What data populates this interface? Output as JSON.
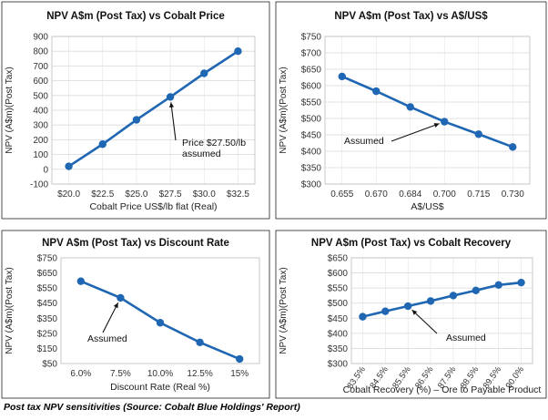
{
  "caption": "Post tax NPV sensitivities (Source: Cobalt Blue Holdings' Report)",
  "chart_data": [
    {
      "type": "line",
      "title": "NPV A$m (Post Tax) vs Cobalt Price",
      "xlabel": "Cobalt Price  US$/lb flat (Real)",
      "ylabel": "NPV (A$m)(Post Tax)",
      "categories": [
        "$20.0",
        "$22.5",
        "$25.0",
        "$27.5",
        "$30.0",
        "$32.5"
      ],
      "values": [
        20,
        170,
        335,
        490,
        650,
        800
      ],
      "ylim": [
        -100,
        900
      ],
      "yticks": [
        "-100",
        "0",
        "100",
        "200",
        "300",
        "400",
        "500",
        "600",
        "700",
        "800",
        "900"
      ],
      "grid": true,
      "color": "#1f66b3",
      "annotation": {
        "text": "Price $27.50/lb\nassumed",
        "point_index": 3
      }
    },
    {
      "type": "line",
      "title": "NPV A$m (Post Tax) vs A$/US$",
      "xlabel": "A$/US$",
      "ylabel": "NPV (A$m)(Post Tax)",
      "categories": [
        "0.655",
        "0.670",
        "0.684",
        "0.700",
        "0.715",
        "0.730"
      ],
      "values": [
        628,
        583,
        535,
        490,
        452,
        413
      ],
      "ylim": [
        300,
        750
      ],
      "yticks": [
        "$300",
        "$350",
        "$400",
        "$450",
        "$500",
        "$550",
        "$600",
        "$650",
        "$700",
        "$750"
      ],
      "grid": true,
      "color": "#1f66b3",
      "annotation": {
        "text": "Assumed",
        "point_index": 3
      }
    },
    {
      "type": "line",
      "title": "NPV A$m (Post Tax) vs Discount Rate",
      "xlabel": "Discount Rate (Real %)",
      "ylabel": "NPV (A$m)(Post Tax)",
      "categories": [
        "6.0%",
        "7.5%",
        "10.0%",
        "12.5%",
        "15%"
      ],
      "values": [
        595,
        485,
        320,
        190,
        80
      ],
      "ylim": [
        50,
        750
      ],
      "yticks": [
        "$50",
        "$150",
        "$250",
        "$350",
        "$450",
        "$550",
        "$650",
        "$750"
      ],
      "grid": false,
      "color": "#1f66b3",
      "annotation": {
        "text": "Assumed",
        "point_index": 1
      }
    },
    {
      "type": "line",
      "title": "NPV A$m (Post Tax) vs Cobalt Recovery",
      "xlabel": "Cobalt Recovery (%) – Ore to Payable Product",
      "ylabel": "NPV (A$m)(Post Tax)",
      "categories": [
        "83.5%",
        "84.5%",
        "85.5%",
        "86.5%",
        "87.5%",
        "88.5%",
        "89.5%",
        "90.0%"
      ],
      "values": [
        455,
        473,
        490,
        507,
        525,
        542,
        560,
        568
      ],
      "ylim": [
        300,
        650
      ],
      "yticks": [
        "$300",
        "$350",
        "$400",
        "$450",
        "$500",
        "$550",
        "$600",
        "$650"
      ],
      "grid": true,
      "rotate_xticks": true,
      "color": "#1f66b3",
      "annotation": {
        "text": "Assumed",
        "point_index": 2
      }
    }
  ]
}
